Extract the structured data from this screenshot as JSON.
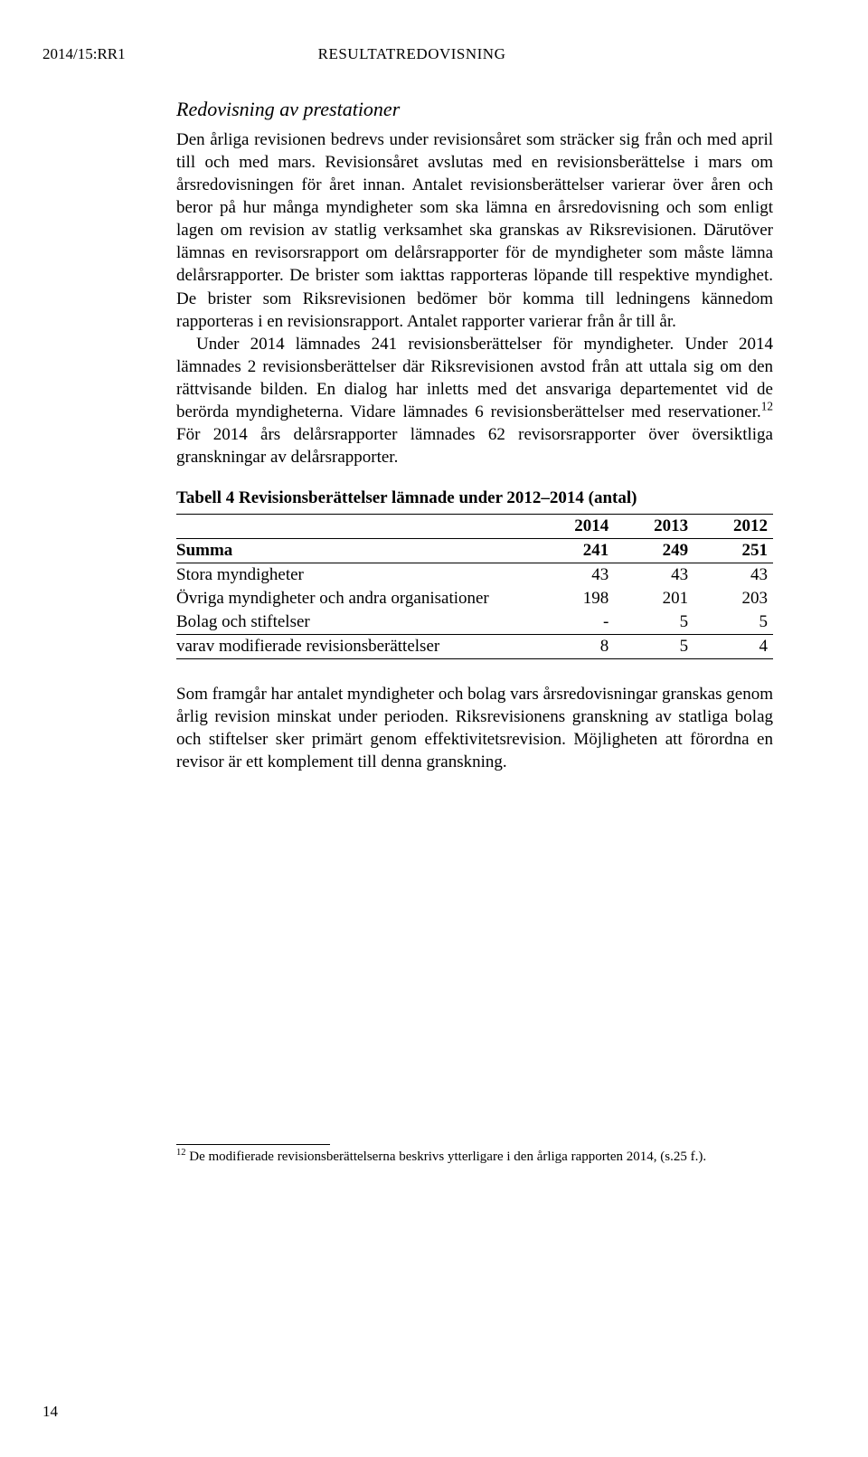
{
  "doc_id": "2014/15:RR1",
  "section_label": "RESULTATREDOVISNING",
  "subheading": "Redovisning av prestationer",
  "paragraph1": "Den årliga revisionen bedrevs under revisionsåret som sträcker sig från och med april till och med mars. Revisionsåret avslutas med en revisionsberättelse i mars om årsredovisningen för året innan. Antalet revisionsberättelser varierar över åren och beror på hur många myndigheter som ska lämna en årsredovisning och som enligt lagen om revision av statlig verksamhet ska granskas av Riksrevisionen. Därutöver lämnas en revisorsrapport om delårsrapporter för de myndigheter som måste lämna delårsrapporter. De brister som iakttas rapporteras löpande till respektive myndighet. De brister som Riksrevisionen bedömer bör komma till ledningens kännedom rapporteras i en revisionsrapport. Antalet rapporter varierar från år till år.",
  "paragraph2a": "Under 2014 lämnades 241 revisionsberättelser för myndigheter. Under 2014 lämnades 2 revisionsberättelser där Riksrevisionen avstod från att uttala sig om den rättvisande bilden. En dialog har inletts med det ansvariga departementet vid de berörda myndigheterna. Vidare lämnades 6 revisionsberättelser med reservationer.",
  "paragraph2b": " För 2014 års delårsrapporter lämnades 62 revisorsrapporter över översiktliga granskningar av delårsrapporter.",
  "footnote_marker": "12",
  "table": {
    "caption": "Tabell 4 Revisionsberättelser lämnade under 2012–2014 (antal)",
    "years": [
      "2014",
      "2013",
      "2012"
    ],
    "sum_label": "Summa",
    "sum_values": [
      "241",
      "249",
      "251"
    ],
    "rows": [
      {
        "label": "Stora myndigheter",
        "values": [
          "43",
          "43",
          "43"
        ]
      },
      {
        "label": "Övriga myndigheter och andra organisationer",
        "values": [
          "198",
          "201",
          "203"
        ]
      },
      {
        "label": "Bolag och stiftelser",
        "values": [
          "-",
          "5",
          "5"
        ]
      },
      {
        "label": "varav modifierade revisionsberättelser",
        "values": [
          "8",
          "5",
          "4"
        ]
      }
    ]
  },
  "paragraph3": "Som framgår har antalet myndigheter och bolag vars årsredovisningar granskas genom årlig revision minskat under perioden. Riksrevisionens granskning av statliga bolag och stiftelser sker primärt genom effektivitetsrevision. Möjligheten att förordna en revisor är ett komplement till denna granskning.",
  "footnote": "De modifierade revisionsberättelserna beskrivs ytterligare i den årliga rapporten 2014, (s.25 f.).",
  "page_number": "14"
}
